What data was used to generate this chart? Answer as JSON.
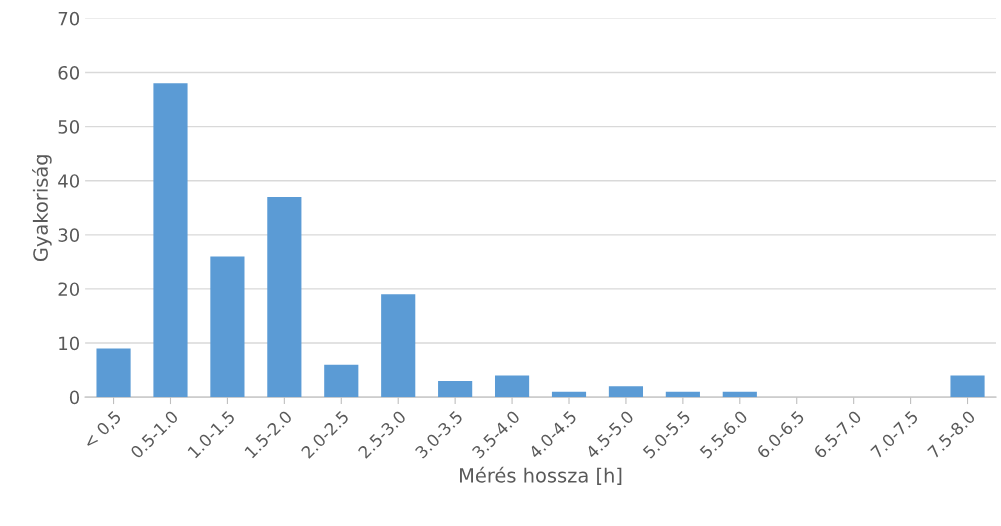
{
  "chart_data": {
    "type": "bar",
    "xlabel": "Mérés hossza [h]",
    "ylabel": "Gyakoriság",
    "categories": [
      "< 0,5",
      "0.5-1.0",
      "1.0-1.5",
      "1.5-2.0",
      "2.0-2.5",
      "2.5-3.0",
      "3.0-3.5",
      "3.5-4.0",
      "4.0-4.5",
      "4.5-5.0",
      "5.0-5.5",
      "5.5-6.0",
      "6.0-6.5",
      "6.5-7.0",
      "7.0-7.5",
      "7.5-8.0"
    ],
    "values": [
      9,
      58,
      26,
      37,
      6,
      19,
      3,
      4,
      1,
      2,
      1,
      1,
      0,
      0,
      0,
      4
    ],
    "color": "#5b9bd5",
    "ylim": [
      0,
      70
    ],
    "yticks": [
      0,
      10,
      20,
      30,
      40,
      50,
      60,
      70
    ],
    "grid": "y",
    "legend": false
  }
}
